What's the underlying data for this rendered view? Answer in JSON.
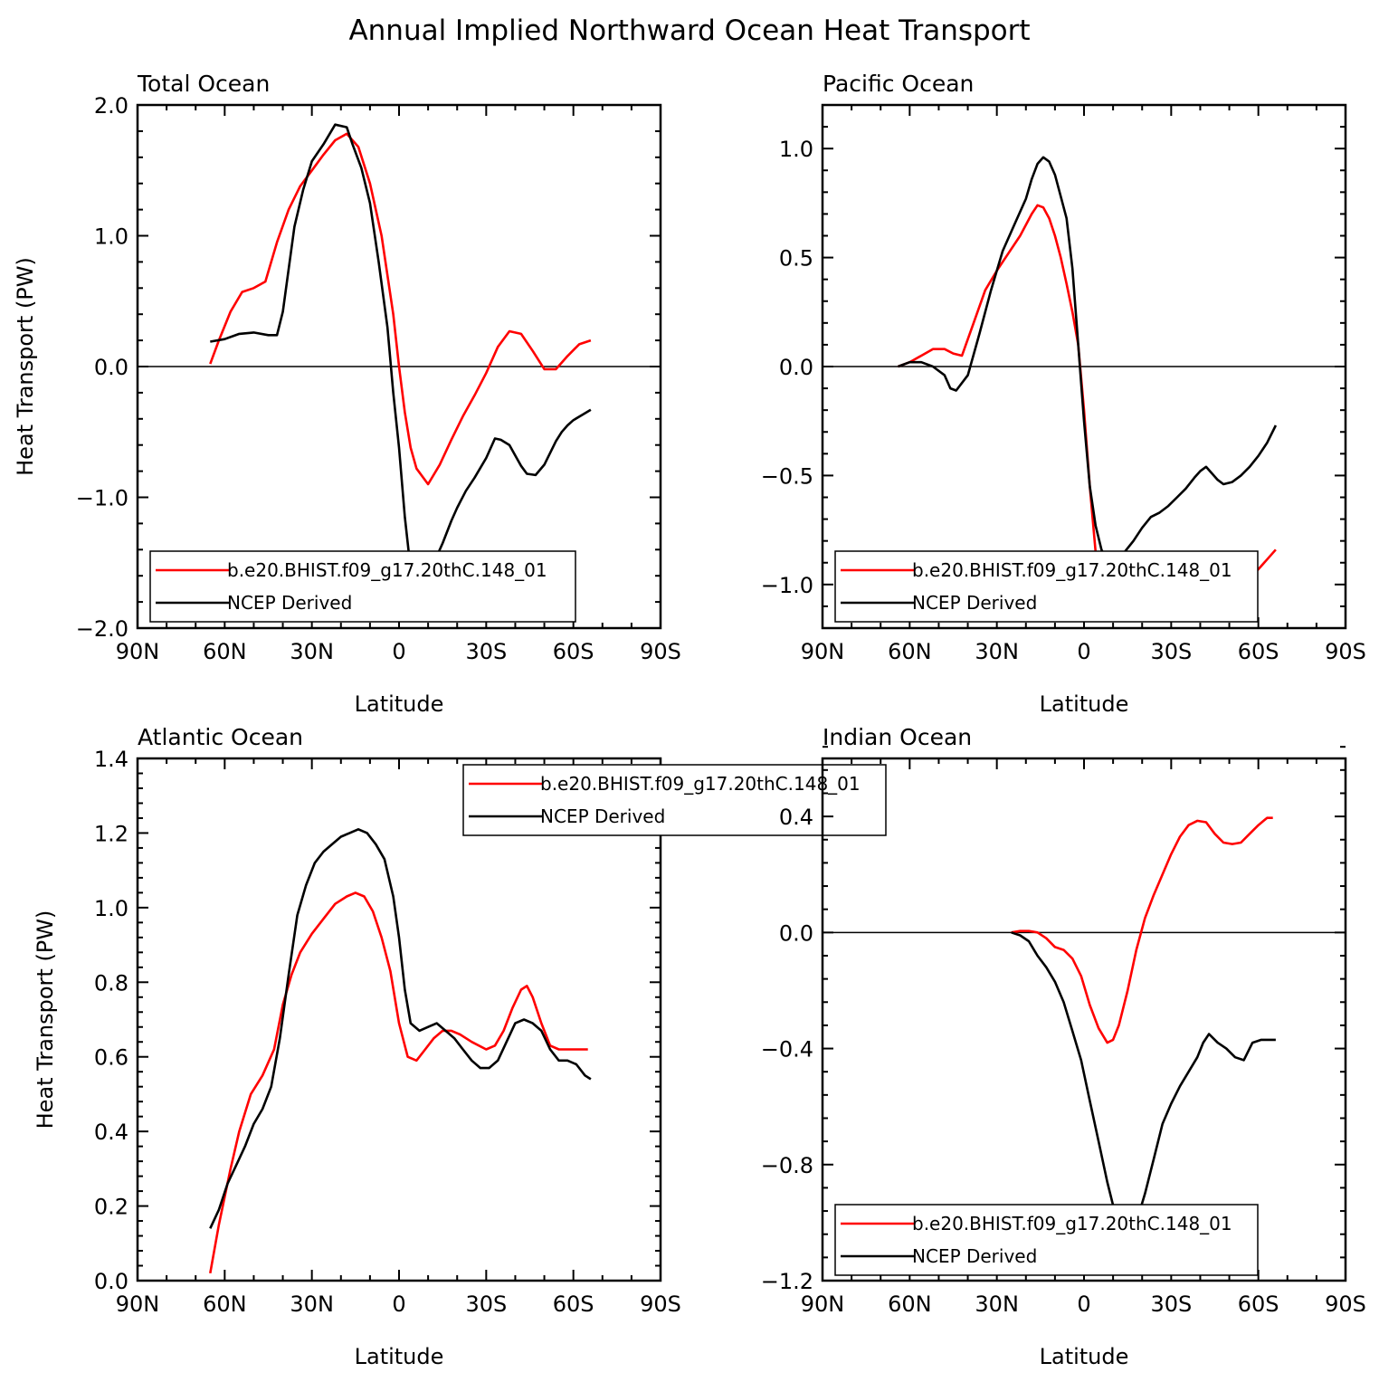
{
  "figure": {
    "title": "Annual Implied Northward Ocean Heat Transport"
  },
  "legend_entries": [
    "b.e20.BHIST.f09_g17.20thC.148_01",
    "NCEP Derived"
  ],
  "colors": {
    "model": "#ff0000",
    "obs": "#000000"
  },
  "chart_data": [
    {
      "type": "line",
      "title": "Total Ocean",
      "xlabel": "Latitude",
      "ylabel": "Heat Transport (PW)",
      "xlim": [
        90,
        -90
      ],
      "ylim": [
        -2.0,
        2.0
      ],
      "xticks": [
        90,
        60,
        30,
        0,
        -30,
        -60,
        -90
      ],
      "xticklabels": [
        "90N",
        "60N",
        "30N",
        "0",
        "30S",
        "60S",
        "90S"
      ],
      "yticks": [
        -2.0,
        -1.0,
        0.0,
        1.0,
        2.0
      ],
      "yticklabels": [
        "−2.0",
        "−1.0",
        "0.0",
        "1.0",
        "2.0"
      ],
      "zero_line": true,
      "legend_position": "lower-left",
      "series": [
        {
          "name": "b.e20.BHIST.f09_g17.20thC.148_01",
          "color": "#ff0000",
          "x": [
            65,
            62,
            58,
            54,
            50,
            46,
            42,
            38,
            34,
            30,
            26,
            22,
            18,
            14,
            10,
            6,
            2,
            0,
            -2,
            -4,
            -6,
            -10,
            -14,
            -18,
            -22,
            -26,
            -30,
            -34,
            -38,
            -42,
            -46,
            -50,
            -54,
            -58,
            -62,
            -66
          ],
          "y": [
            0.02,
            0.2,
            0.42,
            0.57,
            0.6,
            0.65,
            0.95,
            1.2,
            1.38,
            1.5,
            1.62,
            1.73,
            1.78,
            1.68,
            1.4,
            1.0,
            0.4,
            0.0,
            -0.35,
            -0.62,
            -0.78,
            -0.9,
            -0.75,
            -0.56,
            -0.38,
            -0.22,
            -0.05,
            0.15,
            0.27,
            0.25,
            0.12,
            -0.02,
            -0.02,
            0.08,
            0.17,
            0.2
          ]
        },
        {
          "name": "NCEP Derived",
          "color": "#000000",
          "x": [
            65,
            60,
            55,
            50,
            45,
            42,
            40,
            36,
            33,
            30,
            26,
            22,
            18,
            16,
            13,
            10,
            7,
            4,
            2,
            0,
            -2,
            -4,
            -6,
            -8,
            -10,
            -12,
            -15,
            -18,
            -20,
            -23,
            -26,
            -30,
            -33,
            -35,
            -38,
            -40,
            -42,
            -44,
            -47,
            -50,
            -52,
            -54,
            -56,
            -58,
            -60,
            -63,
            -66
          ],
          "y": [
            0.19,
            0.21,
            0.25,
            0.26,
            0.24,
            0.24,
            0.42,
            1.07,
            1.35,
            1.57,
            1.7,
            1.85,
            1.83,
            1.7,
            1.52,
            1.25,
            0.8,
            0.3,
            -0.2,
            -0.62,
            -1.15,
            -1.55,
            -1.65,
            -1.68,
            -1.6,
            -1.5,
            -1.35,
            -1.18,
            -1.08,
            -0.95,
            -0.85,
            -0.7,
            -0.55,
            -0.56,
            -0.6,
            -0.68,
            -0.76,
            -0.82,
            -0.83,
            -0.75,
            -0.66,
            -0.57,
            -0.5,
            -0.45,
            -0.41,
            -0.37,
            -0.33
          ]
        }
      ]
    },
    {
      "type": "line",
      "title": "Pacific Ocean",
      "xlabel": "Latitude",
      "ylabel": "",
      "xlim": [
        90,
        -90
      ],
      "ylim": [
        -1.2,
        1.2
      ],
      "xticks": [
        90,
        60,
        30,
        0,
        -30,
        -60,
        -90
      ],
      "xticklabels": [
        "90N",
        "60N",
        "30N",
        "0",
        "30S",
        "60S",
        "90S"
      ],
      "yticks": [
        -1.0,
        -0.5,
        0.0,
        0.5,
        1.0
      ],
      "yticklabels": [
        "−1.0",
        "−0.5",
        "0.0",
        "0.5",
        "1.0"
      ],
      "zero_line": true,
      "legend_position": "lower-left",
      "series": [
        {
          "name": "b.e20.BHIST.f09_g17.20thC.148_01",
          "color": "#ff0000",
          "x": [
            64,
            60,
            56,
            52,
            48,
            45,
            42,
            38,
            34,
            30,
            26,
            22,
            18,
            16,
            14,
            12,
            10,
            8,
            6,
            4,
            2,
            0,
            -2,
            -4,
            -6,
            -8,
            -10,
            -12,
            -16,
            -20,
            -25,
            -30,
            -35,
            -40,
            -44,
            -48,
            -52,
            -55,
            -58,
            -62,
            -66
          ],
          "y": [
            0.0,
            0.02,
            0.05,
            0.08,
            0.08,
            0.06,
            0.05,
            0.2,
            0.35,
            0.44,
            0.52,
            0.6,
            0.7,
            0.74,
            0.73,
            0.68,
            0.6,
            0.5,
            0.38,
            0.25,
            0.1,
            -0.2,
            -0.55,
            -0.85,
            -1.02,
            -1.1,
            -1.12,
            -1.11,
            -1.09,
            -1.06,
            -1.03,
            -0.98,
            -0.93,
            -0.9,
            -0.9,
            -0.91,
            -0.93,
            -0.97,
            -0.96,
            -0.9,
            -0.84
          ]
        },
        {
          "name": "NCEP Derived",
          "color": "#000000",
          "x": [
            64,
            60,
            56,
            52,
            48,
            46,
            44,
            40,
            36,
            32,
            28,
            24,
            20,
            18,
            16,
            14,
            12,
            10,
            8,
            6,
            4,
            2,
            0,
            -2,
            -4,
            -6,
            -8,
            -10,
            -12,
            -14,
            -17,
            -20,
            -23,
            -26,
            -29,
            -32,
            -35,
            -38,
            -40,
            -42,
            -44,
            -46,
            -48,
            -51,
            -54,
            -57,
            -60,
            -63,
            -66
          ],
          "y": [
            0.0,
            0.02,
            0.02,
            0.0,
            -0.04,
            -0.1,
            -0.11,
            -0.04,
            0.15,
            0.35,
            0.53,
            0.65,
            0.77,
            0.86,
            0.93,
            0.96,
            0.94,
            0.88,
            0.78,
            0.68,
            0.45,
            0.1,
            -0.25,
            -0.55,
            -0.73,
            -0.84,
            -0.89,
            -0.91,
            -0.89,
            -0.85,
            -0.8,
            -0.74,
            -0.69,
            -0.67,
            -0.64,
            -0.6,
            -0.56,
            -0.51,
            -0.48,
            -0.46,
            -0.49,
            -0.52,
            -0.54,
            -0.53,
            -0.5,
            -0.46,
            -0.41,
            -0.35,
            -0.27
          ]
        }
      ]
    },
    {
      "type": "line",
      "title": "Atlantic Ocean",
      "xlabel": "Latitude",
      "ylabel": "Heat Transport (PW)",
      "xlim": [
        90,
        -90
      ],
      "ylim": [
        0.0,
        1.4
      ],
      "xticks": [
        90,
        60,
        30,
        0,
        -30,
        -60,
        -90
      ],
      "xticklabels": [
        "90N",
        "60N",
        "30N",
        "0",
        "30S",
        "60S",
        "90S"
      ],
      "yticks": [
        0.0,
        0.2,
        0.4,
        0.6,
        0.8,
        1.0,
        1.2,
        1.4
      ],
      "yticklabels": [
        "0.0",
        "0.2",
        "0.4",
        "0.6",
        "0.8",
        "1.0",
        "1.2",
        "1.4"
      ],
      "zero_line": false,
      "legend_position": "top-center",
      "series": [
        {
          "name": "b.e20.BHIST.f09_g17.20thC.148_01",
          "color": "#ff0000",
          "x": [
            65,
            62,
            58,
            55,
            51,
            47,
            43,
            40,
            37,
            34,
            30,
            26,
            22,
            18,
            15,
            12,
            9,
            6,
            3,
            0,
            -3,
            -6,
            -9,
            -12,
            -15,
            -18,
            -21,
            -25,
            -30,
            -33,
            -36,
            -39,
            -42,
            -44,
            -46,
            -49,
            -52,
            -55,
            -58,
            -62,
            -65
          ],
          "y": [
            0.02,
            0.15,
            0.3,
            0.4,
            0.5,
            0.55,
            0.62,
            0.74,
            0.82,
            0.88,
            0.93,
            0.97,
            1.01,
            1.03,
            1.04,
            1.03,
            0.99,
            0.92,
            0.83,
            0.69,
            0.6,
            0.59,
            0.62,
            0.65,
            0.67,
            0.67,
            0.66,
            0.64,
            0.62,
            0.63,
            0.67,
            0.73,
            0.78,
            0.79,
            0.76,
            0.69,
            0.63,
            0.62,
            0.62,
            0.62,
            0.62
          ]
        },
        {
          "name": "NCEP Derived",
          "color": "#000000",
          "x": [
            65,
            62,
            59,
            56,
            53,
            50,
            47,
            44,
            41,
            38,
            35,
            32,
            29,
            26,
            23,
            20,
            17,
            14,
            11,
            8,
            5,
            2,
            0,
            -2,
            -4,
            -7,
            -10,
            -13,
            -16,
            -19,
            -22,
            -25,
            -28,
            -31,
            -34,
            -37,
            -40,
            -43,
            -46,
            -49,
            -52,
            -55,
            -58,
            -61,
            -64,
            -66
          ],
          "y": [
            0.14,
            0.19,
            0.26,
            0.31,
            0.36,
            0.42,
            0.46,
            0.52,
            0.65,
            0.82,
            0.98,
            1.06,
            1.12,
            1.15,
            1.17,
            1.19,
            1.2,
            1.21,
            1.2,
            1.17,
            1.13,
            1.03,
            0.92,
            0.78,
            0.69,
            0.67,
            0.68,
            0.69,
            0.67,
            0.65,
            0.62,
            0.59,
            0.57,
            0.57,
            0.59,
            0.64,
            0.69,
            0.7,
            0.69,
            0.67,
            0.62,
            0.59,
            0.59,
            0.58,
            0.55,
            0.54
          ]
        }
      ]
    },
    {
      "type": "line",
      "title": "Indian Ocean",
      "xlabel": "Latitude",
      "ylabel": "",
      "xlim": [
        90,
        -90
      ],
      "ylim": [
        -1.2,
        0.6
      ],
      "xticks": [
        90,
        60,
        30,
        0,
        -30,
        -60,
        -90
      ],
      "xticklabels": [
        "90N",
        "60N",
        "30N",
        "0",
        "30S",
        "60S",
        "90S"
      ],
      "yticks": [
        -1.2,
        -0.8,
        -0.4,
        0.0,
        0.4
      ],
      "yticklabels": [
        "−1.2",
        "−0.8",
        "−0.4",
        "0.0",
        "0.4"
      ],
      "zero_line": true,
      "legend_position": "lower-left",
      "series": [
        {
          "name": "b.e20.BHIST.f09_g17.20thC.148_01",
          "color": "#ff0000",
          "x": [
            25,
            22,
            19,
            16,
            13,
            10,
            7,
            4,
            1,
            -2,
            -5,
            -8,
            -10,
            -12,
            -15,
            -18,
            -21,
            -24,
            -27,
            -30,
            -33,
            -36,
            -39,
            -42,
            -45,
            -48,
            -51,
            -54,
            -57,
            -60,
            -63,
            -65
          ],
          "y": [
            0.0,
            0.005,
            0.005,
            0.0,
            -0.02,
            -0.05,
            -0.06,
            -0.09,
            -0.15,
            -0.25,
            -0.33,
            -0.38,
            -0.37,
            -0.32,
            -0.2,
            -0.06,
            0.05,
            0.13,
            0.2,
            0.27,
            0.33,
            0.37,
            0.385,
            0.38,
            0.34,
            0.31,
            0.305,
            0.31,
            0.34,
            0.37,
            0.395,
            0.395
          ]
        },
        {
          "name": "NCEP Derived",
          "color": "#000000",
          "x": [
            25,
            22,
            19,
            16,
            13,
            10,
            7,
            4,
            1,
            -2,
            -5,
            -8,
            -10,
            -12,
            -15,
            -18,
            -21,
            -24,
            -27,
            -30,
            -33,
            -36,
            -39,
            -41,
            -43,
            -46,
            -49,
            -52,
            -55,
            -58,
            -61,
            -64,
            -66
          ],
          "y": [
            0.0,
            -0.01,
            -0.03,
            -0.08,
            -0.12,
            -0.17,
            -0.24,
            -0.34,
            -0.44,
            -0.58,
            -0.72,
            -0.86,
            -0.94,
            -1.02,
            -1.05,
            -1.0,
            -0.9,
            -0.78,
            -0.66,
            -0.59,
            -0.53,
            -0.48,
            -0.43,
            -0.38,
            -0.35,
            -0.38,
            -0.4,
            -0.43,
            -0.44,
            -0.38,
            -0.37,
            -0.37,
            -0.37
          ]
        }
      ]
    }
  ]
}
